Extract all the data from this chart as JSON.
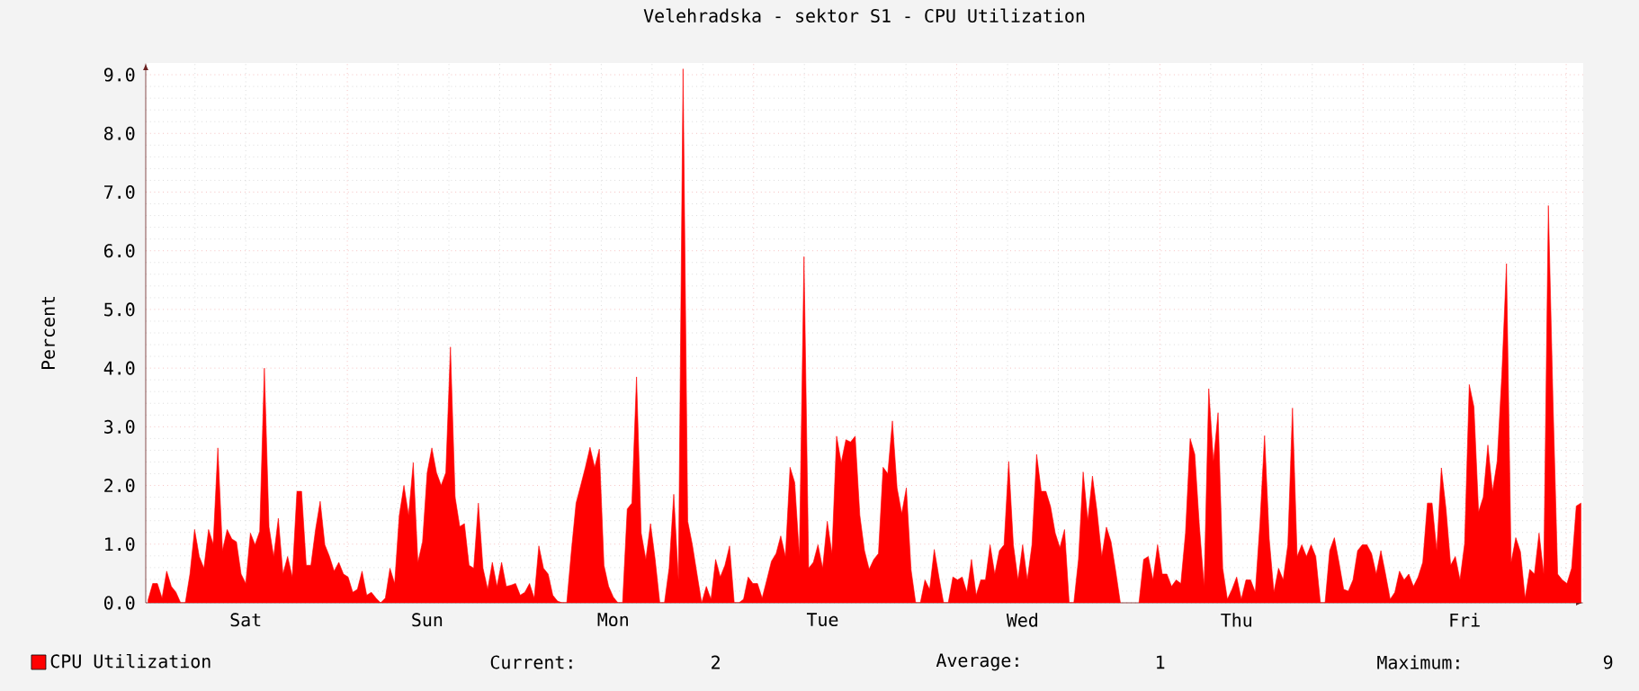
{
  "chart_data": {
    "type": "area",
    "title": "Velehradska - sektor S1 - CPU Utilization",
    "ylabel": "Percent",
    "categories": [
      null,
      null,
      null,
      null,
      null,
      null,
      null,
      null,
      null,
      null,
      null,
      null,
      null,
      null,
      null,
      null,
      null,
      null,
      null,
      null,
      null,
      "Sat",
      null,
      null,
      null,
      null,
      null,
      null,
      null,
      null,
      null,
      null,
      null,
      null,
      null,
      null,
      null,
      null,
      null,
      null,
      null,
      null,
      null,
      null,
      null,
      null,
      null,
      null,
      null,
      null,
      null,
      null,
      null,
      null,
      null,
      null,
      null,
      null,
      null,
      null,
      "Sun",
      null,
      null,
      null,
      null,
      null,
      null,
      null,
      null,
      null,
      null,
      null,
      null,
      null,
      null,
      null,
      null,
      null,
      null,
      null,
      null,
      null,
      null,
      null,
      null,
      null,
      null,
      null,
      null,
      null,
      null,
      null,
      null,
      null,
      null,
      null,
      null,
      null,
      null,
      null,
      "Mon",
      null,
      null,
      null,
      null,
      null,
      null,
      null,
      null,
      null,
      null,
      null,
      null,
      null,
      null,
      null,
      null,
      null,
      null,
      null,
      null,
      null,
      null,
      null,
      null,
      null,
      null,
      null,
      null,
      null,
      null,
      null,
      null,
      null,
      null,
      null,
      null,
      null,
      null,
      null,
      null,
      null,
      null,
      null,
      null,
      "Tue",
      null,
      null,
      null,
      null,
      null,
      null,
      null,
      null,
      null,
      null,
      null,
      null,
      null,
      null,
      null,
      null,
      null,
      null,
      null,
      null,
      null,
      null,
      null,
      null,
      null,
      null,
      null,
      null,
      null,
      null,
      null,
      null,
      null,
      null,
      null,
      null,
      null,
      null,
      null,
      null,
      null,
      null,
      "Wed",
      null,
      null,
      null,
      null,
      null,
      null,
      null,
      null,
      null,
      null,
      null,
      null,
      null,
      null,
      null,
      null,
      null,
      null,
      null,
      null,
      null,
      null,
      null,
      null,
      null,
      null,
      null,
      null,
      null,
      null,
      null,
      null,
      null,
      null,
      null,
      null,
      null,
      null,
      null,
      null,
      null,
      null,
      null,
      null,
      null,
      "Thu",
      null,
      null,
      null,
      null,
      null,
      null,
      null,
      null,
      null,
      null,
      null,
      null,
      null,
      null,
      null,
      null,
      null,
      null,
      null,
      null,
      null,
      null,
      null,
      null,
      null,
      null,
      null,
      null,
      null,
      null,
      null,
      null,
      null,
      null,
      null,
      null,
      null,
      null,
      null,
      null,
      null,
      null,
      null,
      null,
      null,
      null,
      null,
      null,
      "Fri",
      null,
      null,
      null,
      null,
      null,
      null,
      null,
      null,
      null,
      null,
      null,
      null,
      null,
      null,
      null,
      null,
      null,
      null,
      null,
      null,
      null,
      null,
      null,
      null,
      null
    ],
    "ylim": [
      0,
      9.2
    ],
    "yticks": [
      {
        "value": 0,
        "label": "0.0"
      },
      {
        "value": 1,
        "label": "1.0"
      },
      {
        "value": 2,
        "label": "2.0"
      },
      {
        "value": 3,
        "label": "3.0"
      },
      {
        "value": 4,
        "label": "4.0"
      },
      {
        "value": 5,
        "label": "5.0"
      },
      {
        "value": 6,
        "label": "6.0"
      },
      {
        "value": 7,
        "label": "7.0"
      },
      {
        "value": 8,
        "label": "8.0"
      },
      {
        "value": 9,
        "label": "9.0"
      }
    ],
    "grid": true,
    "legend": "bottom left",
    "annotations": [
      "Current:",
      "2",
      "Average:",
      "1",
      "Maximum:",
      "9"
    ],
    "series": [
      {
        "name": "CPU Utilization",
        "color": "#ff0000",
        "values": [
          0.05,
          0.33,
          0.33,
          0.08,
          0.54,
          0.28,
          0.18,
          0,
          0,
          0.49,
          1.25,
          0.79,
          0.59,
          1.25,
          1.0,
          2.64,
          0.89,
          1.25,
          1.09,
          1.04,
          0.49,
          0.33,
          1.19,
          0.99,
          1.22,
          4.0,
          1.29,
          0.79,
          1.44,
          0.49,
          0.79,
          0.44,
          1.9,
          1.9,
          0.64,
          0.64,
          1.25,
          1.73,
          0.99,
          0.79,
          0.54,
          0.69,
          0.49,
          0.44,
          0.18,
          0.23,
          0.54,
          0.13,
          0.18,
          0.08,
          0,
          0.08,
          0.59,
          0.33,
          1.49,
          2.0,
          1.49,
          2.39,
          0.69,
          1.04,
          2.22,
          2.64,
          2.22,
          2.0,
          2.22,
          4.36,
          1.8,
          1.3,
          1.35,
          0.64,
          0.59,
          1.7,
          0.59,
          0.23,
          0.69,
          0.28,
          0.69,
          0.28,
          0.3,
          0.33,
          0.13,
          0.18,
          0.33,
          0.08,
          0.97,
          0.59,
          0.49,
          0.13,
          0.03,
          0,
          0,
          0.89,
          1.7,
          2.0,
          2.31,
          2.65,
          2.31,
          2.62,
          0.64,
          0.28,
          0.1,
          0,
          0,
          1.6,
          1.7,
          3.85,
          1.19,
          0.74,
          1.35,
          0.74,
          0,
          0,
          0.59,
          1.85,
          0.39,
          9.1,
          1.39,
          0.99,
          0.49,
          0,
          0.28,
          0.06,
          0.74,
          0.44,
          0.64,
          0.97,
          0,
          0,
          0.06,
          0.44,
          0.33,
          0.33,
          0.08,
          0.39,
          0.71,
          0.84,
          1.14,
          0.79,
          2.31,
          2.05,
          0.79,
          5.9,
          0.59,
          0.69,
          0.99,
          0.59,
          1.39,
          0.84,
          2.84,
          2.39,
          2.78,
          2.74,
          2.84,
          1.49,
          0.89,
          0.57,
          0.74,
          0.84,
          2.31,
          2.2,
          3.1,
          1.96,
          1.52,
          1.96,
          0.57,
          0,
          0,
          0.39,
          0.23,
          0.91,
          0.44,
          0,
          0,
          0.44,
          0.39,
          0.44,
          0.18,
          0.74,
          0.13,
          0.39,
          0.39,
          0.99,
          0.49,
          0.89,
          0.99,
          2.41,
          0.99,
          0.39,
          0.99,
          0.39,
          0.99,
          2.53,
          1.9,
          1.9,
          1.64,
          1.19,
          0.94,
          1.25,
          0,
          0,
          0.74,
          2.23,
          1.4,
          2.16,
          1.55,
          0.79,
          1.29,
          1.04,
          0.54,
          0,
          null,
          null,
          null,
          0,
          0.74,
          0.79,
          0.39,
          0.99,
          0.49,
          0.49,
          0.28,
          0.39,
          0.33,
          1.19,
          2.8,
          2.53,
          1.29,
          0.28,
          3.65,
          2.41,
          3.24,
          0.59,
          0.06,
          0.23,
          0.44,
          0.06,
          0.39,
          0.39,
          0.18,
          1.35,
          2.85,
          1.09,
          0.18,
          0.59,
          0.39,
          0.99,
          3.32,
          0.79,
          0.99,
          0.79,
          0.99,
          0.79,
          0,
          0,
          0.89,
          1.11,
          0.69,
          0.23,
          0.2,
          0.39,
          0.89,
          0.99,
          0.99,
          0.84,
          0.49,
          0.89,
          0.49,
          0.06,
          0.18,
          0.54,
          0.39,
          0.49,
          0.28,
          0.44,
          0.69,
          1.7,
          1.7,
          0.89,
          2.3,
          1.6,
          0.64,
          0.79,
          0.39,
          1.01,
          3.72,
          3.34,
          1.55,
          1.8,
          2.69,
          1.9,
          2.41,
          3.89,
          5.78,
          0.69,
          1.11,
          0.87,
          0.08,
          0.57,
          0.49,
          1.19,
          0.49,
          6.77,
          3.42,
          0.49,
          0.39,
          0.33,
          0.59,
          1.65,
          1.7
        ]
      }
    ]
  }
}
